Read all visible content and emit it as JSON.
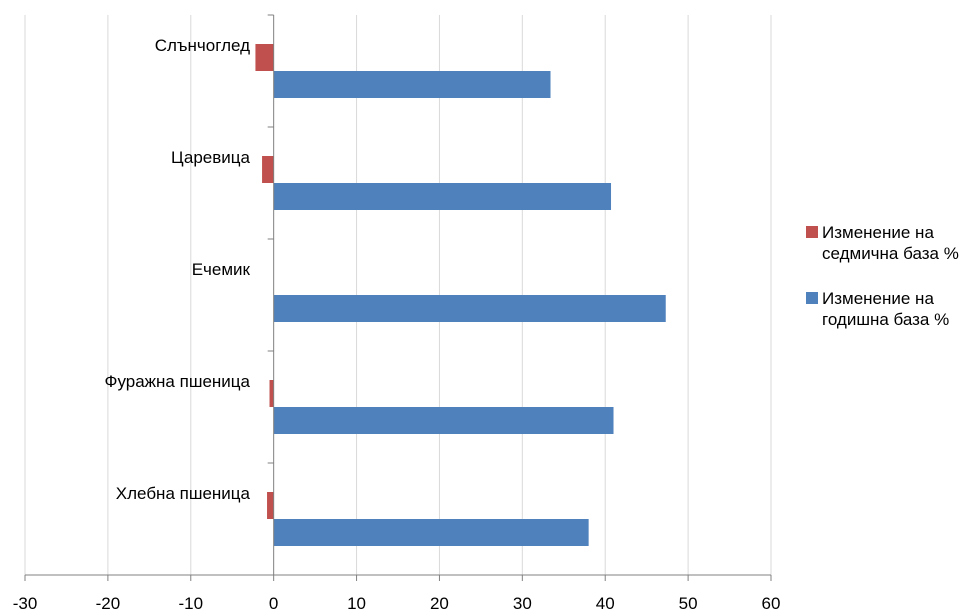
{
  "chart_data": {
    "type": "bar",
    "orientation": "horizontal",
    "categories": [
      "Хлебна пшеница",
      "Фуражна пшеница",
      "Ечемик",
      "Царевица",
      "Слънчоглед"
    ],
    "series": [
      {
        "name": "Изменение на седмична база %",
        "color": "#c0504d",
        "values": [
          -0.8,
          -0.5,
          0.0,
          -1.4,
          -2.2
        ]
      },
      {
        "name": "Изменение на годишна база %",
        "color": "#4f81bd",
        "values": [
          38.0,
          41.0,
          47.3,
          40.7,
          33.4
        ]
      }
    ],
    "xlim": [
      -30,
      60
    ],
    "xticks": [
      "-30",
      "-20",
      "-10",
      "0",
      "10",
      "20",
      "30",
      "40",
      "50",
      "60"
    ],
    "grid": true,
    "legend": "right",
    "title": "",
    "xlabel": "",
    "ylabel": ""
  }
}
